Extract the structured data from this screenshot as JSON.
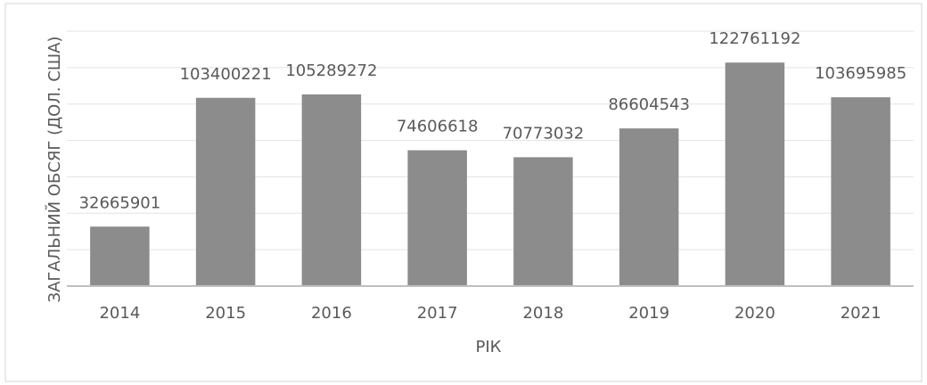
{
  "chart_data": {
    "type": "bar",
    "categories": [
      "2014",
      "2015",
      "2016",
      "2017",
      "2018",
      "2019",
      "2020",
      "2021"
    ],
    "values": [
      32665901,
      103400221,
      105289272,
      74606618,
      70773032,
      86604543,
      122761192,
      103695985
    ],
    "color": "#8c8c8c",
    "xlabel": "РІК",
    "ylabel": "ЗАГАЛЬНИЙ ОБСЯГ (ДОЛ. США)",
    "ylim": [
      0,
      140000000
    ],
    "yticks": [
      0,
      20000000,
      40000000,
      60000000,
      80000000,
      100000000,
      120000000,
      140000000
    ],
    "grid": true
  }
}
